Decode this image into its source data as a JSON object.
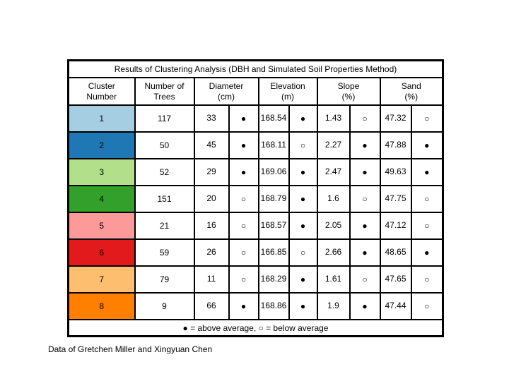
{
  "slide": {
    "title": "Results of Clustering Analysis (DBH and Simulated Soil Properties Method)",
    "legend": "● = above average, ○ = below average",
    "caption": "Data of Gretchen Miller and Xingyuan Chen"
  },
  "symbols": {
    "above_average": "●",
    "below_average": "○"
  },
  "table": {
    "columns": [
      {
        "line1": "Cluster",
        "line2": "Number"
      },
      {
        "line1": "Number of",
        "line2": "Trees"
      },
      {
        "line1": "Diameter",
        "line2": "(cm)"
      },
      {
        "line1": "Elevation",
        "line2": "(m)"
      },
      {
        "line1": "Slope",
        "line2": "(%)"
      },
      {
        "line1": "Sand",
        "line2": "(%)"
      }
    ],
    "rows": [
      {
        "cluster": "1",
        "color": "#A6CEE3",
        "trees": "117",
        "diameter": "33",
        "diameter_flag": "●",
        "elevation": "168.54",
        "elevation_flag": "●",
        "slope": "1.43",
        "slope_flag": "○",
        "sand": "47.32",
        "sand_flag": "○"
      },
      {
        "cluster": "2",
        "color": "#1F78B4",
        "trees": "50",
        "diameter": "45",
        "diameter_flag": "●",
        "elevation": "168.11",
        "elevation_flag": "○",
        "slope": "2.27",
        "slope_flag": "●",
        "sand": "47.88",
        "sand_flag": "●"
      },
      {
        "cluster": "3",
        "color": "#B2DF8A",
        "trees": "52",
        "diameter": "29",
        "diameter_flag": "●",
        "elevation": "169.06",
        "elevation_flag": "●",
        "slope": "2.47",
        "slope_flag": "●",
        "sand": "49.63",
        "sand_flag": "●"
      },
      {
        "cluster": "4",
        "color": "#33A02C",
        "trees": "151",
        "diameter": "20",
        "diameter_flag": "○",
        "elevation": "168.79",
        "elevation_flag": "●",
        "slope": "1.6",
        "slope_flag": "○",
        "sand": "47.75",
        "sand_flag": "○"
      },
      {
        "cluster": "5",
        "color": "#FB9A99",
        "trees": "21",
        "diameter": "16",
        "diameter_flag": "○",
        "elevation": "168.57",
        "elevation_flag": "●",
        "slope": "2.05",
        "slope_flag": "●",
        "sand": "47.12",
        "sand_flag": "○"
      },
      {
        "cluster": "6",
        "color": "#E31A1C",
        "trees": "59",
        "diameter": "26",
        "diameter_flag": "○",
        "elevation": "166.85",
        "elevation_flag": "○",
        "slope": "2.66",
        "slope_flag": "●",
        "sand": "48.65",
        "sand_flag": "●"
      },
      {
        "cluster": "7",
        "color": "#FDBF6F",
        "trees": "79",
        "diameter": "11",
        "diameter_flag": "○",
        "elevation": "168.29",
        "elevation_flag": "●",
        "slope": "1.61",
        "slope_flag": "○",
        "sand": "47.65",
        "sand_flag": "○"
      },
      {
        "cluster": "8",
        "color": "#FF7F00",
        "trees": "9",
        "diameter": "66",
        "diameter_flag": "●",
        "elevation": "168.86",
        "elevation_flag": "●",
        "slope": "1.9",
        "slope_flag": "●",
        "sand": "47.44",
        "sand_flag": "○"
      }
    ]
  }
}
